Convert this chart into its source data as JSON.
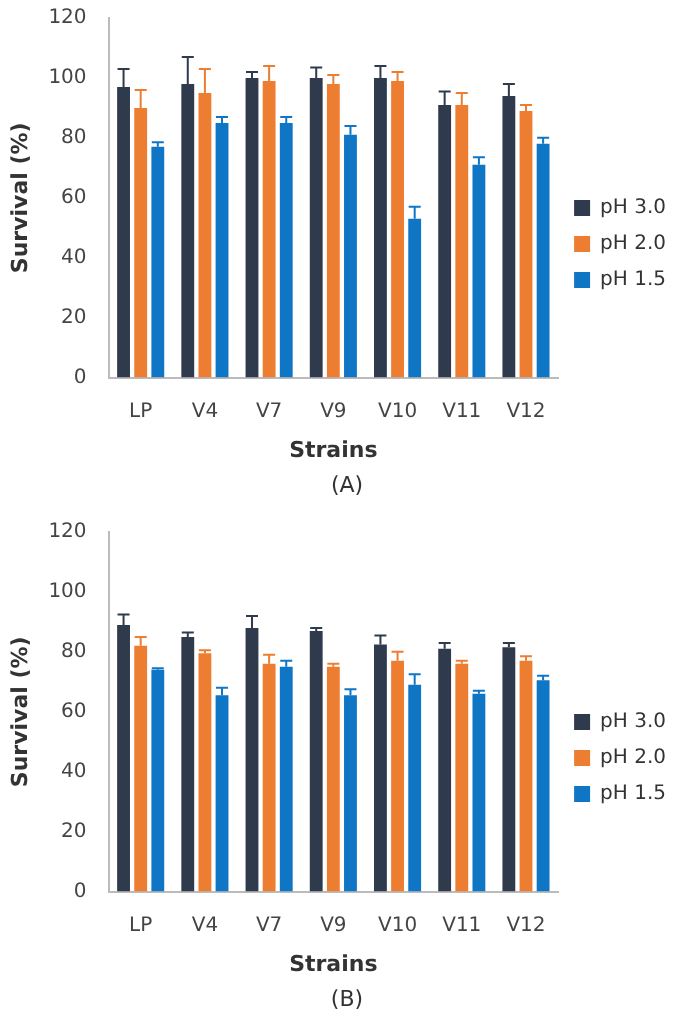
{
  "chart_data": [
    {
      "type": "bar",
      "categories": [
        "LP",
        "V4",
        "V7",
        "V9",
        "V10",
        "V11",
        "V12"
      ],
      "xlabel": "Strains",
      "ylabel": "Survival (%)",
      "ylim": [
        0,
        120
      ],
      "yticks": [
        0,
        20,
        40,
        60,
        80,
        100,
        120
      ],
      "legend": "right",
      "annotations": [
        "(A)"
      ],
      "series": [
        {
          "name": "pH 3.0",
          "color": "#2f3a4c",
          "values": [
            97,
            98,
            100,
            100,
            100,
            91,
            94
          ],
          "errors": [
            [
              97,
              103
            ],
            [
              98,
              107
            ],
            [
              100,
              102
            ],
            [
              100,
              103.5
            ],
            [
              100,
              104
            ],
            [
              91,
              95.5
            ],
            [
              94,
              98
            ]
          ]
        },
        {
          "name": "pH 2.0",
          "color": "#ed7d31",
          "values": [
            90,
            95,
            99,
            98,
            99,
            91,
            89
          ],
          "errors": [
            [
              90,
              96
            ],
            [
              95,
              103
            ],
            [
              99,
              104
            ],
            [
              98,
              101
            ],
            [
              99,
              102
            ],
            [
              91,
              95
            ],
            [
              89,
              91
            ]
          ]
        },
        {
          "name": "pH 1.5",
          "color": "#0f75c5",
          "values": [
            77,
            85,
            85,
            81,
            53,
            71,
            78
          ],
          "errors": [
            [
              77,
              78.5
            ],
            [
              85,
              87
            ],
            [
              85,
              87
            ],
            [
              81,
              84
            ],
            [
              53,
              57
            ],
            [
              71,
              73.5
            ],
            [
              78,
              80
            ]
          ]
        }
      ]
    },
    {
      "type": "bar",
      "categories": [
        "LP",
        "V4",
        "V7",
        "V9",
        "V10",
        "V11",
        "V12"
      ],
      "xlabel": "Strains",
      "ylabel": "Survival (%)",
      "ylim": [
        0,
        120
      ],
      "yticks": [
        0,
        20,
        40,
        60,
        80,
        100,
        120
      ],
      "legend": "right",
      "annotations": [
        "(B)"
      ],
      "series": [
        {
          "name": "pH 3.0",
          "color": "#2f3a4c",
          "values": [
            89,
            85,
            88,
            87,
            82.5,
            81,
            81.5
          ],
          "errors": [
            [
              89,
              92.5
            ],
            [
              85,
              86.5
            ],
            [
              88,
              92
            ],
            [
              87,
              88
            ],
            [
              82.5,
              85.5
            ],
            [
              81,
              83
            ],
            [
              81.5,
              83
            ]
          ]
        },
        {
          "name": "pH 2.0",
          "color": "#ed7d31",
          "values": [
            82,
            79.5,
            76,
            75,
            77,
            76,
            77
          ],
          "errors": [
            [
              82,
              85
            ],
            [
              79.5,
              80.5
            ],
            [
              76,
              79
            ],
            [
              75,
              76
            ],
            [
              77,
              80
            ],
            [
              76,
              77
            ],
            [
              77,
              78.5
            ]
          ]
        },
        {
          "name": "pH 1.5",
          "color": "#0f75c5",
          "values": [
            74,
            65.5,
            75,
            65.5,
            69,
            66,
            70.5
          ],
          "errors": [
            [
              74,
              74.5
            ],
            [
              65.5,
              68
            ],
            [
              75,
              77
            ],
            [
              65.5,
              67.5
            ],
            [
              69,
              72.5
            ],
            [
              66,
              67
            ],
            [
              70.5,
              72
            ]
          ]
        }
      ]
    }
  ]
}
